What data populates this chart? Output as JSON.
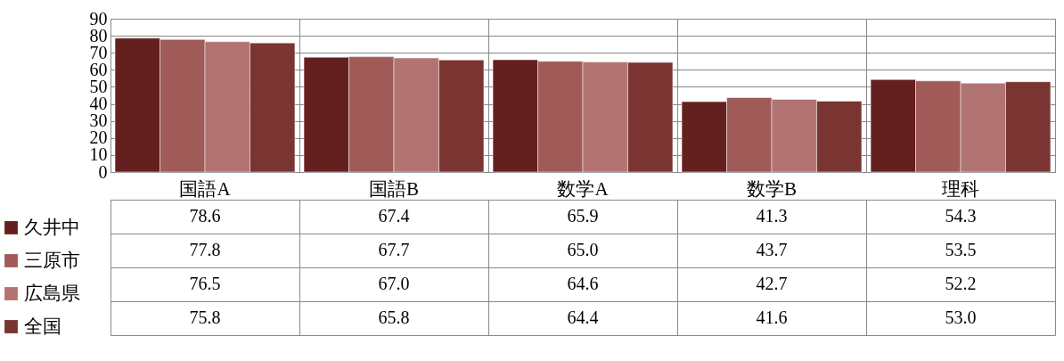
{
  "chart_data": {
    "type": "bar",
    "categories": [
      "国語A",
      "国語B",
      "数学A",
      "数学B",
      "理科"
    ],
    "series": [
      {
        "name": "久井中",
        "color": "#64201f",
        "values": [
          78.6,
          67.4,
          65.9,
          41.3,
          54.3
        ],
        "value_labels": [
          "78.6",
          "67.4",
          "65.9",
          "41.3",
          "54.3"
        ]
      },
      {
        "name": "三原市",
        "color": "#a05a58",
        "values": [
          77.8,
          67.7,
          65.0,
          43.7,
          53.5
        ],
        "value_labels": [
          "77.8",
          "67.7",
          "65.0",
          "43.7",
          "53.5"
        ]
      },
      {
        "name": "広島県",
        "color": "#b27472",
        "values": [
          76.5,
          67.0,
          64.6,
          42.7,
          52.2
        ],
        "value_labels": [
          "76.5",
          "67.0",
          "64.6",
          "42.7",
          "52.2"
        ]
      },
      {
        "name": "全国",
        "color": "#7a3533",
        "values": [
          75.8,
          65.8,
          64.4,
          41.6,
          53.0
        ],
        "value_labels": [
          "75.8",
          "65.8",
          "64.4",
          "41.6",
          "53.0"
        ]
      }
    ],
    "ylim": [
      0,
      90
    ],
    "yticks": [
      0,
      10,
      20,
      30,
      40,
      50,
      60,
      70,
      80,
      90
    ],
    "grid": "y",
    "legend": "left"
  }
}
